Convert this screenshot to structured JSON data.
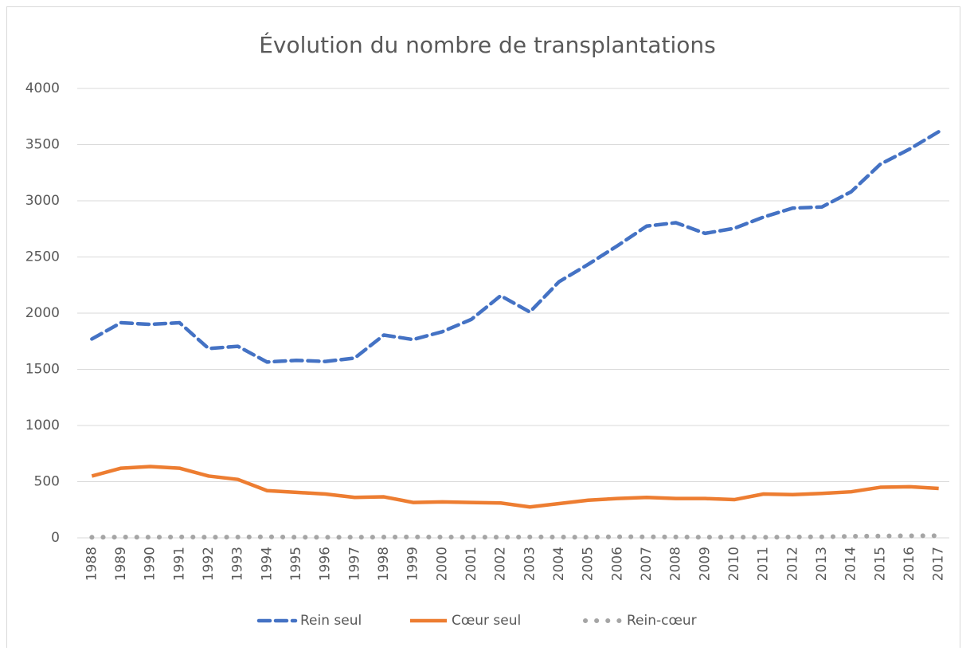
{
  "chart_data": {
    "type": "line",
    "title": "Évolution du nombre de transplantations",
    "categories": [
      "1988",
      "1989",
      "1990",
      "1991",
      "1992",
      "1993",
      "1994",
      "1995",
      "1996",
      "1997",
      "1998",
      "1999",
      "2000",
      "2001",
      "2002",
      "2003",
      "2004",
      "2005",
      "2006",
      "2007",
      "2008",
      "2009",
      "2010",
      "2011",
      "2012",
      "2013",
      "2014",
      "2015",
      "2016",
      "2017"
    ],
    "series": [
      {
        "name": "Rein seul",
        "color": "#4472c4",
        "style": "dash",
        "values": [
          1770,
          1915,
          1900,
          1915,
          1685,
          1705,
          1565,
          1580,
          1570,
          1600,
          1805,
          1765,
          1835,
          1945,
          2155,
          2010,
          2280,
          2435,
          2600,
          2775,
          2805,
          2710,
          2755,
          2855,
          2935,
          2945,
          3080,
          3325,
          3460,
          3615
        ]
      },
      {
        "name": "Cœur seul",
        "color": "#ed7d31",
        "style": "solid",
        "values": [
          550,
          620,
          635,
          620,
          550,
          520,
          420,
          405,
          390,
          360,
          365,
          315,
          320,
          315,
          310,
          275,
          305,
          335,
          350,
          360,
          350,
          350,
          340,
          390,
          385,
          395,
          410,
          450,
          455,
          440
        ]
      },
      {
        "name": "Rein-cœur",
        "color": "#a5a5a5",
        "style": "dot",
        "values": [
          5,
          7,
          6,
          8,
          6,
          7,
          9,
          6,
          5,
          6,
          7,
          8,
          7,
          6,
          6,
          8,
          7,
          6,
          10,
          9,
          8,
          6,
          7,
          5,
          8,
          9,
          14,
          16,
          18,
          19
        ]
      }
    ],
    "ylim": [
      0,
      4000
    ],
    "yticks": [
      0,
      500,
      1000,
      1500,
      2000,
      2500,
      3000,
      3500,
      4000
    ],
    "grid": true,
    "legend": "bottom"
  }
}
